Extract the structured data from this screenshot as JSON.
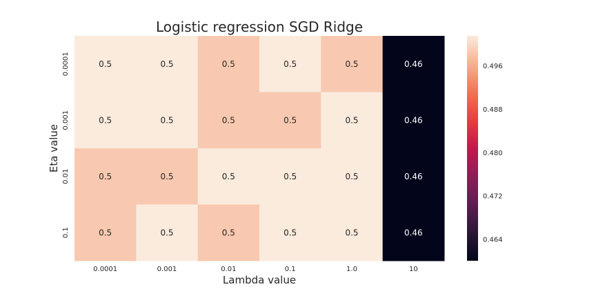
{
  "chart_data": {
    "type": "heatmap",
    "title": "Logistic regression SGD Ridge",
    "xlabel": "Lambda value",
    "ylabel": "Eta value",
    "x_categories": [
      "0.0001",
      "0.001",
      "0.01",
      "0.1",
      "1.0",
      "10"
    ],
    "y_categories": [
      "0.0001",
      "0.001",
      "0.01",
      "0.1"
    ],
    "values": [
      [
        0.5,
        0.5,
        0.5,
        0.5,
        0.5,
        0.46
      ],
      [
        0.5,
        0.5,
        0.5,
        0.5,
        0.5,
        0.46
      ],
      [
        0.5,
        0.5,
        0.5,
        0.5,
        0.5,
        0.46
      ],
      [
        0.5,
        0.5,
        0.5,
        0.5,
        0.5,
        0.46
      ]
    ],
    "underlying_values": [
      [
        0.5015,
        0.5015,
        0.4985,
        0.5015,
        0.4985,
        0.46
      ],
      [
        0.5015,
        0.5015,
        0.4985,
        0.4985,
        0.5015,
        0.46
      ],
      [
        0.4985,
        0.4985,
        0.5015,
        0.5015,
        0.5015,
        0.46
      ],
      [
        0.4985,
        0.5015,
        0.4985,
        0.5015,
        0.5015,
        0.46
      ]
    ],
    "annotations": [
      [
        "0.5",
        "0.5",
        "0.5",
        "0.5",
        "0.5",
        "0.46"
      ],
      [
        "0.5",
        "0.5",
        "0.5",
        "0.5",
        "0.5",
        "0.46"
      ],
      [
        "0.5",
        "0.5",
        "0.5",
        "0.5",
        "0.5",
        "0.46"
      ],
      [
        "0.5",
        "0.5",
        "0.5",
        "0.5",
        "0.5",
        "0.46"
      ]
    ],
    "colorbar": {
      "colormap": "rocket",
      "vmin": 0.46,
      "vmax": 0.5015,
      "ticks": [
        0.464,
        0.472,
        0.48,
        0.488,
        0.496
      ],
      "tick_labels": [
        "0.464",
        "0.472",
        "0.480",
        "0.488",
        "0.496"
      ]
    },
    "grid": false
  }
}
